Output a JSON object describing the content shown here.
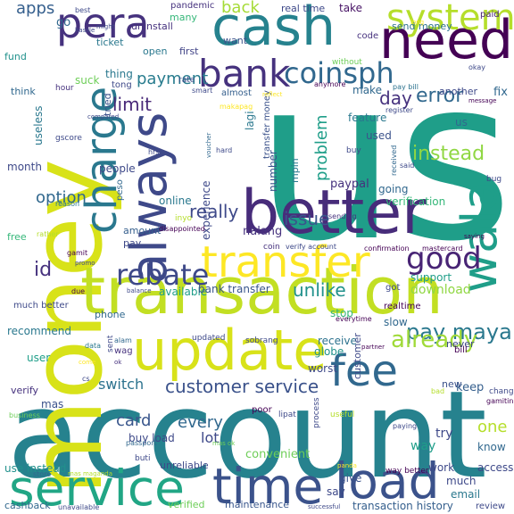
{
  "colors": {
    "background": "#ffffff",
    "palette": [
      "#440154",
      "#482878",
      "#3e4989",
      "#31688e",
      "#26828e",
      "#1f9e89",
      "#35b779",
      "#6ece58",
      "#b5de2b",
      "#fde725"
    ]
  },
  "words": [
    {
      "text": "use",
      "color": "#1f9e89"
    },
    {
      "text": "account",
      "color": "#26828e"
    },
    {
      "text": "money",
      "color": "#d8e219"
    },
    {
      "text": "transaction",
      "color": "#c2df23"
    },
    {
      "text": "better",
      "color": "#472c7a"
    },
    {
      "text": "service",
      "color": "#21a685"
    },
    {
      "text": "time",
      "color": "#3b528b"
    },
    {
      "text": "load",
      "color": "#3b528b"
    },
    {
      "text": "update",
      "color": "#d8e219"
    },
    {
      "text": "cash",
      "color": "#26828e"
    },
    {
      "text": "need",
      "color": "#440154"
    },
    {
      "text": "always",
      "color": "#3e4989"
    },
    {
      "text": "bank",
      "color": "#46327e"
    },
    {
      "text": "transfer",
      "color": "#fde725"
    },
    {
      "text": "fee",
      "color": "#31688e"
    },
    {
      "text": "wala",
      "color": "#1f9e89"
    },
    {
      "text": "charge",
      "color": "#2a788e"
    },
    {
      "text": "pera",
      "color": "#46327e"
    },
    {
      "text": "system",
      "color": "#b5de2b"
    },
    {
      "text": "coinsph",
      "color": "#31688e"
    },
    {
      "text": "rebate",
      "color": "#3e4989"
    },
    {
      "text": "good",
      "color": "#482475"
    },
    {
      "text": "pay maya",
      "color": "#2a788e"
    },
    {
      "text": "already",
      "color": "#a0da39"
    },
    {
      "text": "customer service",
      "color": "#3b528b"
    },
    {
      "text": "error",
      "color": "#31688e"
    },
    {
      "text": "instead",
      "color": "#90d743"
    },
    {
      "text": "limit",
      "color": "#482878"
    },
    {
      "text": "payment",
      "color": "#287c8e"
    },
    {
      "text": "option",
      "color": "#31688e"
    },
    {
      "text": "really",
      "color": "#3e4989"
    },
    {
      "text": "unlike",
      "color": "#21918c"
    },
    {
      "text": "issue",
      "color": "#39568c"
    },
    {
      "text": "apps",
      "color": "#355f8d"
    },
    {
      "text": "back",
      "color": "#a5db36"
    },
    {
      "text": "day",
      "color": "#46327e"
    },
    {
      "text": "switch",
      "color": "#2c728e"
    },
    {
      "text": "every",
      "color": "#31688e"
    },
    {
      "text": "card",
      "color": "#39568c"
    },
    {
      "text": "one",
      "color": "#b5de2b"
    },
    {
      "text": "id",
      "color": "#46327e"
    },
    {
      "text": "send money",
      "color": "#2c728e"
    },
    {
      "text": "take",
      "color": "#471365"
    },
    {
      "text": "paid",
      "color": "#482475"
    },
    {
      "text": "uninstall",
      "color": "#46327e"
    },
    {
      "text": "open",
      "color": "#2a788e"
    },
    {
      "text": "first",
      "color": "#414487"
    },
    {
      "text": "real time",
      "color": "#3e4989"
    },
    {
      "text": "go",
      "color": "#31688e"
    },
    {
      "text": "many",
      "color": "#35b779"
    },
    {
      "text": "ticket",
      "color": "#2a788e"
    },
    {
      "text": "want",
      "color": "#3b528b"
    },
    {
      "text": "code",
      "color": "#46327e"
    },
    {
      "text": "without",
      "color": "#6ece58"
    },
    {
      "text": "fund",
      "color": "#21918c"
    },
    {
      "text": "suck",
      "color": "#6ece58"
    },
    {
      "text": "thing",
      "color": "#2a788e"
    },
    {
      "text": "tong",
      "color": "#3e4989"
    },
    {
      "text": "hour",
      "color": "#46327e"
    },
    {
      "text": "think",
      "color": "#31688e"
    },
    {
      "text": "useless",
      "color": "#2a788e"
    },
    {
      "text": "tried",
      "color": "#3b528b"
    },
    {
      "text": "rate",
      "color": "#3e4989"
    },
    {
      "text": "smart",
      "color": "#3e4989"
    },
    {
      "text": "almost",
      "color": "#355f8d"
    },
    {
      "text": "anymore",
      "color": "#440154"
    },
    {
      "text": "make",
      "color": "#31688e"
    },
    {
      "text": "another",
      "color": "#3e4989"
    },
    {
      "text": "fix",
      "color": "#31688e"
    },
    {
      "text": "pay bill",
      "color": "#2c728e"
    },
    {
      "text": "register",
      "color": "#3e4989"
    },
    {
      "text": "feature",
      "color": "#2a788e"
    },
    {
      "text": "used",
      "color": "#3b528b"
    },
    {
      "text": "us",
      "color": "#31688e"
    },
    {
      "text": "problem",
      "color": "#1f9e89"
    },
    {
      "text": "lagi",
      "color": "#2a788e"
    },
    {
      "text": "mpin",
      "color": "#2a788e"
    },
    {
      "text": "paypal",
      "color": "#46327e"
    },
    {
      "text": "month",
      "color": "#3e4989"
    },
    {
      "text": "gscore",
      "color": "#3e4989"
    },
    {
      "text": "people",
      "color": "#3e4989"
    },
    {
      "text": "peso",
      "color": "#31688e"
    },
    {
      "text": "number",
      "color": "#3b528b"
    },
    {
      "text": "transfer money",
      "color": "#3b528b"
    },
    {
      "text": "experience",
      "color": "#3e4989"
    },
    {
      "text": "online",
      "color": "#2a788e"
    },
    {
      "text": "going",
      "color": "#31688e"
    },
    {
      "text": "verification",
      "color": "#35b779"
    },
    {
      "text": "amount",
      "color": "#355f8d"
    },
    {
      "text": "nalang",
      "color": "#46327e"
    },
    {
      "text": "pay",
      "color": "#3e4989"
    },
    {
      "text": "available",
      "color": "#1f9e89"
    },
    {
      "text": "bank transfer",
      "color": "#39568c"
    },
    {
      "text": "support",
      "color": "#1f9e89"
    },
    {
      "text": "download",
      "color": "#90d743"
    },
    {
      "text": "got",
      "color": "#3e4989"
    },
    {
      "text": "realtime",
      "color": "#440154"
    },
    {
      "text": "slow",
      "color": "#31688e"
    },
    {
      "text": "recommend",
      "color": "#2a788e"
    },
    {
      "text": "phone",
      "color": "#31688e"
    },
    {
      "text": "user",
      "color": "#1f9e89"
    },
    {
      "text": "verify",
      "color": "#46327e"
    },
    {
      "text": "mas",
      "color": "#3b528b"
    },
    {
      "text": "receive",
      "color": "#2c728e"
    },
    {
      "text": "globe",
      "color": "#21918c"
    },
    {
      "text": "worst",
      "color": "#3e4989"
    },
    {
      "text": "never",
      "color": "#3e4989"
    },
    {
      "text": "customer",
      "color": "#3e4989"
    },
    {
      "text": "keep",
      "color": "#355f8d"
    },
    {
      "text": "new",
      "color": "#3b528b"
    },
    {
      "text": "lot",
      "color": "#3e4989"
    },
    {
      "text": "buy load",
      "color": "#3e4989"
    },
    {
      "text": "try",
      "color": "#3e4989"
    },
    {
      "text": "know",
      "color": "#31688e"
    },
    {
      "text": "way",
      "color": "#1f9e89"
    },
    {
      "text": "work",
      "color": "#3e4989"
    },
    {
      "text": "use instead",
      "color": "#21918c"
    },
    {
      "text": "convenient",
      "color": "#6ece58"
    },
    {
      "text": "unreliable",
      "color": "#3e4989"
    },
    {
      "text": "give",
      "color": "#3b528b"
    },
    {
      "text": "much",
      "color": "#3e4989"
    },
    {
      "text": "access",
      "color": "#3e4989"
    },
    {
      "text": "say",
      "color": "#3e4989"
    },
    {
      "text": "email",
      "color": "#2a788e"
    },
    {
      "text": "maintenance",
      "color": "#39568c"
    },
    {
      "text": "transaction history",
      "color": "#355f8d"
    },
    {
      "text": "verified",
      "color": "#6ece58"
    },
    {
      "text": "cashback",
      "color": "#31688e"
    },
    {
      "text": "review",
      "color": "#3e4989"
    },
    {
      "text": "much better",
      "color": "#3e4989"
    },
    {
      "text": "due",
      "color": "#440154"
    },
    {
      "text": "coin",
      "color": "#46327e"
    },
    {
      "text": "verify account",
      "color": "#3e4989"
    },
    {
      "text": "confirmation",
      "color": "#440154"
    },
    {
      "text": "mastercard",
      "color": "#440154"
    },
    {
      "text": "sending",
      "color": "#46327e"
    },
    {
      "text": "inyo",
      "color": "#b5de2b"
    },
    {
      "text": "disappointed",
      "color": "#440154"
    },
    {
      "text": "free",
      "color": "#35b779"
    },
    {
      "text": "reason",
      "color": "#2a788e"
    },
    {
      "text": "rather",
      "color": "#b5de2b"
    },
    {
      "text": "promo",
      "color": "#3e4989"
    },
    {
      "text": "gamit",
      "color": "#440154"
    },
    {
      "text": "balance",
      "color": "#3e4989"
    },
    {
      "text": "stop",
      "color": "#35b779"
    },
    {
      "text": "everytime",
      "color": "#440154"
    },
    {
      "text": "updated",
      "color": "#3e4989"
    },
    {
      "text": "sobrang",
      "color": "#3e4989"
    },
    {
      "text": "alam",
      "color": "#31688e"
    },
    {
      "text": "wag",
      "color": "#46327e"
    },
    {
      "text": "data",
      "color": "#2a788e"
    },
    {
      "text": "sent",
      "color": "#3e4989"
    },
    {
      "text": "ok",
      "color": "#46327e"
    },
    {
      "text": "come",
      "color": "#fde725"
    },
    {
      "text": "cs",
      "color": "#3e4989"
    },
    {
      "text": "bad",
      "color": "#b5de2b"
    },
    {
      "text": "bill",
      "color": "#440154"
    },
    {
      "text": "change",
      "color": "#3e4989"
    },
    {
      "text": "gamitin",
      "color": "#440154"
    },
    {
      "text": "business",
      "color": "#6ece58"
    },
    {
      "text": "poor",
      "color": "#440154"
    },
    {
      "text": "lipat",
      "color": "#3e4989"
    },
    {
      "text": "useful",
      "color": "#b5de2b"
    },
    {
      "text": "process",
      "color": "#3e4989"
    },
    {
      "text": "paying",
      "color": "#3e4989"
    },
    {
      "text": "passport",
      "color": "#31688e"
    },
    {
      "text": "mas ok",
      "color": "#6ece58"
    },
    {
      "text": "buti",
      "color": "#3e4989"
    },
    {
      "text": "store",
      "color": "#31688e"
    },
    {
      "text": "mas maganda",
      "color": "#b5de2b"
    },
    {
      "text": "unavailable",
      "color": "#3e4989"
    },
    {
      "text": "panda",
      "color": "#fde725"
    },
    {
      "text": "successful",
      "color": "#3e4989"
    },
    {
      "text": "way better",
      "color": "#440154"
    },
    {
      "text": "partner",
      "color": "#440154"
    },
    {
      "text": "hassle",
      "color": "#3e4989"
    },
    {
      "text": "might",
      "color": "#3e4989"
    },
    {
      "text": "best",
      "color": "#3e4989"
    },
    {
      "text": "pandemic",
      "color": "#46327e"
    },
    {
      "text": "makapag",
      "color": "#fde725"
    },
    {
      "text": "compared",
      "color": "#3e4989"
    },
    {
      "text": "reflect",
      "color": "#fde725"
    },
    {
      "text": "voucher",
      "color": "#31688e"
    },
    {
      "text": "hrs",
      "color": "#3e4989"
    },
    {
      "text": "hard",
      "color": "#3e4989"
    },
    {
      "text": "long",
      "color": "#fde725"
    },
    {
      "text": "okay",
      "color": "#3e4989"
    },
    {
      "text": "message",
      "color": "#440154"
    },
    {
      "text": "bug",
      "color": "#3e4989"
    },
    {
      "text": "said",
      "color": "#3e4989"
    },
    {
      "text": "received",
      "color": "#31688e"
    },
    {
      "text": "saying",
      "color": "#440154"
    },
    {
      "text": "buy",
      "color": "#3e4989"
    }
  ]
}
